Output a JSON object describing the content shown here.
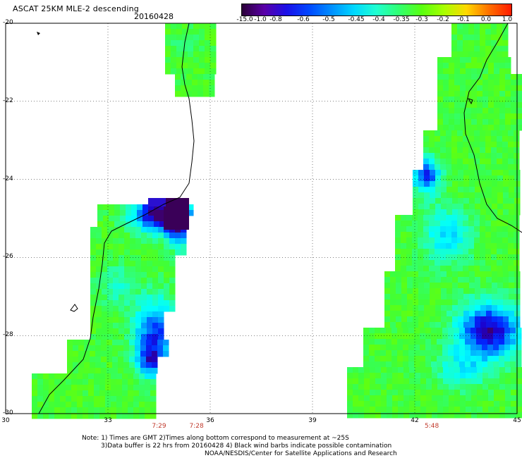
{
  "header": {
    "title": "ASCAT 25KM MLE-2 descending",
    "date": "20160428"
  },
  "colorbar": {
    "labels": [
      "-15.0",
      "-1.0",
      "-0.8",
      "-0.6",
      "-0.5",
      "-0.45",
      "-0.4",
      "-0.35",
      "-0.3",
      "-0.2",
      "-0.1",
      "0.0",
      "1.0"
    ],
    "colors": [
      "#2b0038",
      "#5a00a8",
      "#1a10e8",
      "#0048ff",
      "#0090ff",
      "#00d8ff",
      "#20ffd0",
      "#30ff70",
      "#58ff10",
      "#a8ff00",
      "#ffd800",
      "#ff7000",
      "#ff1a00"
    ]
  },
  "axes": {
    "y_labels": [
      "-20",
      "-22",
      "-24",
      "-26",
      "-28",
      "-30"
    ],
    "x_labels": [
      "30",
      "33",
      "36",
      "39",
      "42",
      "45"
    ]
  },
  "pass_times": [
    {
      "text": "7:29",
      "lon": 34.5
    },
    {
      "text": "7:28",
      "lon": 35.6
    },
    {
      "text": "5:48",
      "lon": 42.5
    }
  ],
  "notes": {
    "line1": "Note: 1) Times are GMT 2)Times along bottom correspond to measurement at ~25S",
    "line2": "3)Data buffer is 22 hrs from 20160428 4) Black wind barbs indicate possible contamination",
    "line3": "NOAA/NESDIS/Center for Satellite Applications and Research"
  }
}
